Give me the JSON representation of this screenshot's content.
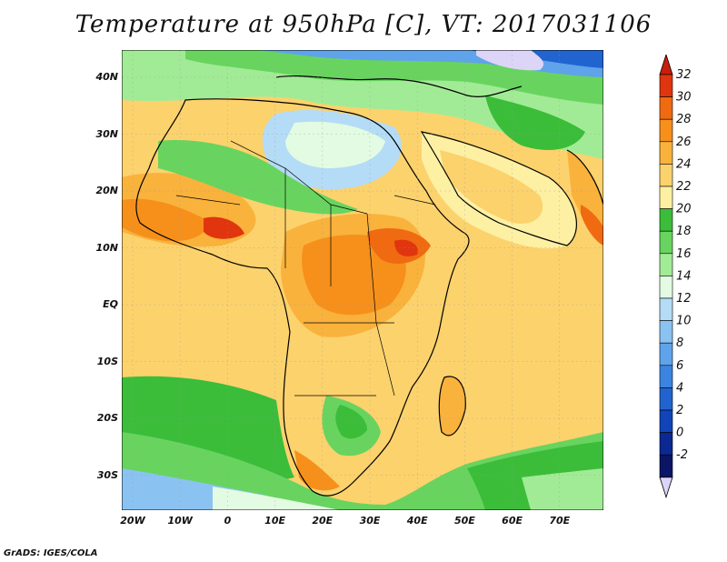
{
  "title": "Temperature at 950hPa [C], VT: 2017031106",
  "credit": "GrADS: IGES/COLA",
  "map": {
    "lat_labels": [
      "40N",
      "30N",
      "20N",
      "10N",
      "EQ",
      "10S",
      "20S",
      "30S"
    ],
    "lon_labels": [
      "20W",
      "10W",
      "0",
      "10E",
      "20E",
      "30E",
      "40E",
      "50E",
      "60E",
      "70E"
    ]
  },
  "colorbar": {
    "labels": [
      "32",
      "30",
      "28",
      "26",
      "24",
      "22",
      "20",
      "18",
      "16",
      "14",
      "12",
      "10",
      "8",
      "6",
      "4",
      "2",
      "0",
      "-2"
    ],
    "colors": [
      "#e0350e",
      "#f06a11",
      "#f6901b",
      "#f9b23c",
      "#fcd26d",
      "#fdf0a3",
      "#3bbd3a",
      "#68d45f",
      "#a2eb96",
      "#e2fbe2",
      "#b4dcf7",
      "#8ac3f1",
      "#5fa3ea",
      "#3b84df",
      "#2164cf",
      "#1044b8",
      "#0b2893",
      "#0a1565"
    ],
    "top_arrow_color": "#c81e0a",
    "bottom_arrow_color": "#dcd5f7"
  }
}
